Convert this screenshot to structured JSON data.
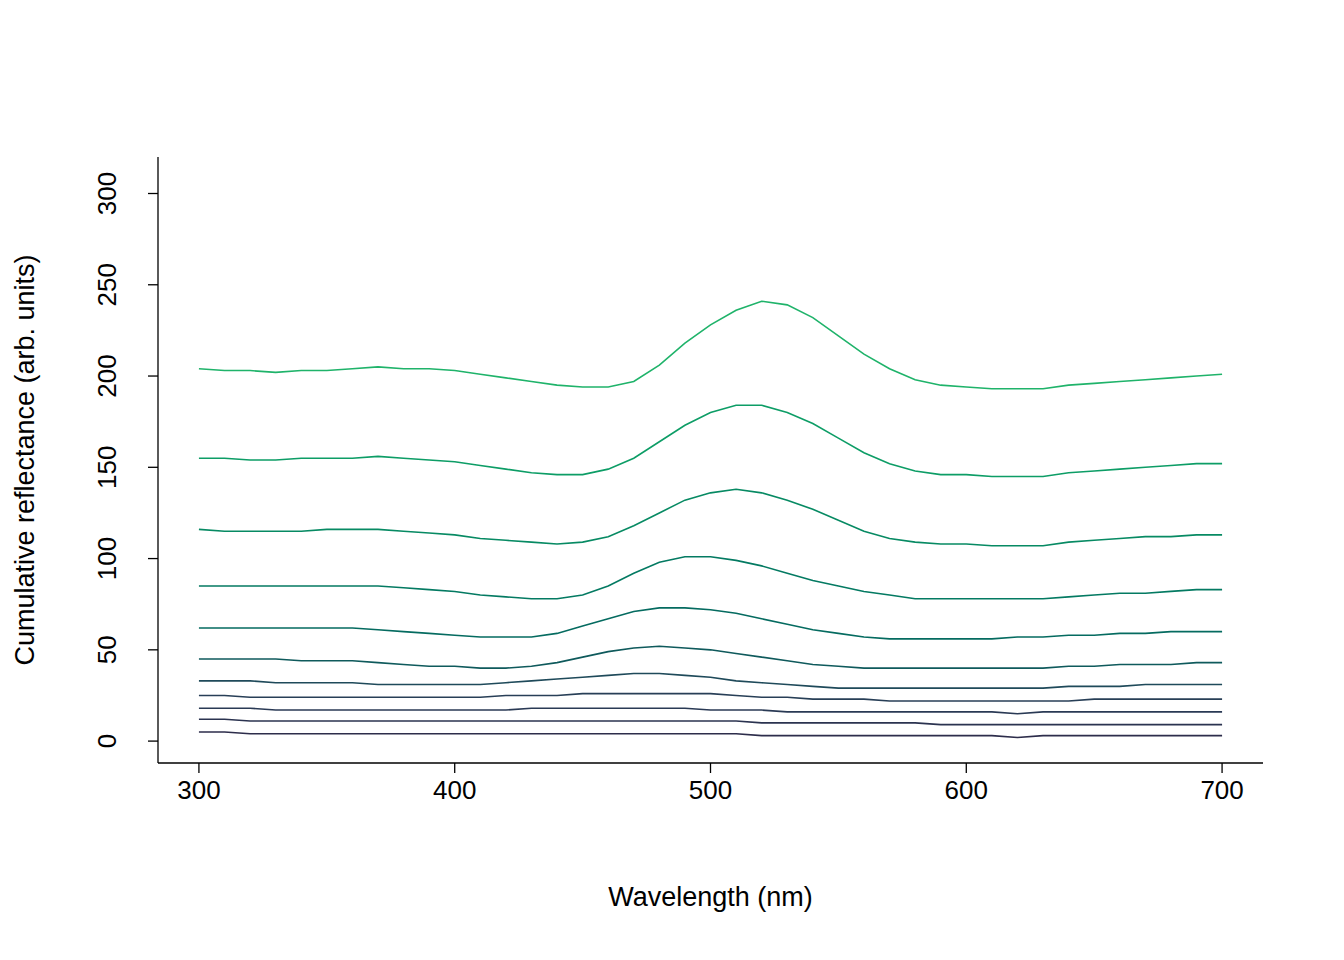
{
  "chart_data": {
    "type": "line",
    "x_label": "Wavelength (nm)",
    "y_label": "Cumulative reflectance (arb. units)",
    "xlim": [
      284,
      716
    ],
    "xticks": [
      300,
      400,
      500,
      600,
      700
    ],
    "ylim": [
      -12,
      320
    ],
    "yticks": [
      0,
      50,
      100,
      150,
      200,
      250,
      300
    ],
    "grid": false,
    "x": [
      300,
      310,
      320,
      330,
      340,
      350,
      360,
      370,
      380,
      390,
      400,
      410,
      420,
      430,
      440,
      450,
      460,
      470,
      480,
      490,
      500,
      510,
      520,
      530,
      540,
      550,
      560,
      570,
      580,
      590,
      600,
      610,
      620,
      630,
      640,
      650,
      660,
      670,
      680,
      690,
      700
    ],
    "series": [
      {
        "color": "#2d2d4b",
        "values": [
          5,
          5,
          4,
          4,
          4,
          4,
          4,
          4,
          4,
          4,
          4,
          4,
          4,
          4,
          4,
          4,
          4,
          4,
          4,
          4,
          4,
          4,
          3,
          3,
          3,
          3,
          3,
          3,
          3,
          3,
          3,
          3,
          2,
          3,
          3,
          3,
          3,
          3,
          3,
          3,
          3
        ]
      },
      {
        "color": "#2b3350",
        "values": [
          12,
          12,
          11,
          11,
          11,
          11,
          11,
          11,
          11,
          11,
          11,
          11,
          11,
          11,
          11,
          11,
          11,
          11,
          11,
          11,
          11,
          11,
          10,
          10,
          10,
          10,
          10,
          10,
          10,
          9,
          9,
          9,
          9,
          9,
          9,
          9,
          9,
          9,
          9,
          9,
          9
        ]
      },
      {
        "color": "#2a3a55",
        "values": [
          18,
          18,
          18,
          17,
          17,
          17,
          17,
          17,
          17,
          17,
          17,
          17,
          17,
          18,
          18,
          18,
          18,
          18,
          18,
          18,
          17,
          17,
          17,
          16,
          16,
          16,
          16,
          16,
          16,
          16,
          16,
          16,
          15,
          16,
          16,
          16,
          16,
          16,
          16,
          16,
          16
        ]
      },
      {
        "color": "#283f57",
        "values": [
          25,
          25,
          24,
          24,
          24,
          24,
          24,
          24,
          24,
          24,
          24,
          24,
          25,
          25,
          25,
          26,
          26,
          26,
          26,
          26,
          26,
          25,
          24,
          24,
          23,
          23,
          23,
          22,
          22,
          22,
          22,
          22,
          22,
          22,
          22,
          23,
          23,
          23,
          23,
          23,
          23
        ]
      },
      {
        "color": "#1f4a5a",
        "values": [
          33,
          33,
          33,
          32,
          32,
          32,
          32,
          31,
          31,
          31,
          31,
          31,
          32,
          33,
          34,
          35,
          36,
          37,
          37,
          36,
          35,
          33,
          32,
          31,
          30,
          29,
          29,
          29,
          29,
          29,
          29,
          29,
          29,
          29,
          30,
          30,
          30,
          31,
          31,
          31,
          31
        ]
      },
      {
        "color": "#0f5a5c",
        "values": [
          45,
          45,
          45,
          45,
          44,
          44,
          44,
          43,
          42,
          41,
          41,
          40,
          40,
          41,
          43,
          46,
          49,
          51,
          52,
          51,
          50,
          48,
          46,
          44,
          42,
          41,
          40,
          40,
          40,
          40,
          40,
          40,
          40,
          40,
          41,
          41,
          42,
          42,
          42,
          43,
          43
        ]
      },
      {
        "color": "#056b60",
        "values": [
          62,
          62,
          62,
          62,
          62,
          62,
          62,
          61,
          60,
          59,
          58,
          57,
          57,
          57,
          59,
          63,
          67,
          71,
          73,
          73,
          72,
          70,
          67,
          64,
          61,
          59,
          57,
          56,
          56,
          56,
          56,
          56,
          57,
          57,
          58,
          58,
          59,
          59,
          60,
          60,
          60
        ]
      },
      {
        "color": "#047a62",
        "values": [
          85,
          85,
          85,
          85,
          85,
          85,
          85,
          85,
          84,
          83,
          82,
          80,
          79,
          78,
          78,
          80,
          85,
          92,
          98,
          101,
          101,
          99,
          96,
          92,
          88,
          85,
          82,
          80,
          78,
          78,
          78,
          78,
          78,
          78,
          79,
          80,
          81,
          81,
          82,
          83,
          83
        ]
      },
      {
        "color": "#078a63",
        "values": [
          116,
          115,
          115,
          115,
          115,
          116,
          116,
          116,
          115,
          114,
          113,
          111,
          110,
          109,
          108,
          109,
          112,
          118,
          125,
          132,
          136,
          138,
          136,
          132,
          127,
          121,
          115,
          111,
          109,
          108,
          108,
          107,
          107,
          107,
          109,
          110,
          111,
          112,
          112,
          113,
          113
        ]
      },
      {
        "color": "#0d9d66",
        "values": [
          155,
          155,
          154,
          154,
          155,
          155,
          155,
          156,
          155,
          154,
          153,
          151,
          149,
          147,
          146,
          146,
          149,
          155,
          164,
          173,
          180,
          184,
          184,
          180,
          174,
          166,
          158,
          152,
          148,
          146,
          146,
          145,
          145,
          145,
          147,
          148,
          149,
          150,
          151,
          152,
          152
        ]
      },
      {
        "color": "#1fb36a",
        "values": [
          204,
          203,
          203,
          202,
          203,
          203,
          204,
          205,
          204,
          204,
          203,
          201,
          199,
          197,
          195,
          194,
          194,
          197,
          206,
          218,
          228,
          236,
          241,
          239,
          232,
          222,
          212,
          204,
          198,
          195,
          194,
          193,
          193,
          193,
          195,
          196,
          197,
          198,
          199,
          200,
          201
        ]
      }
    ]
  }
}
